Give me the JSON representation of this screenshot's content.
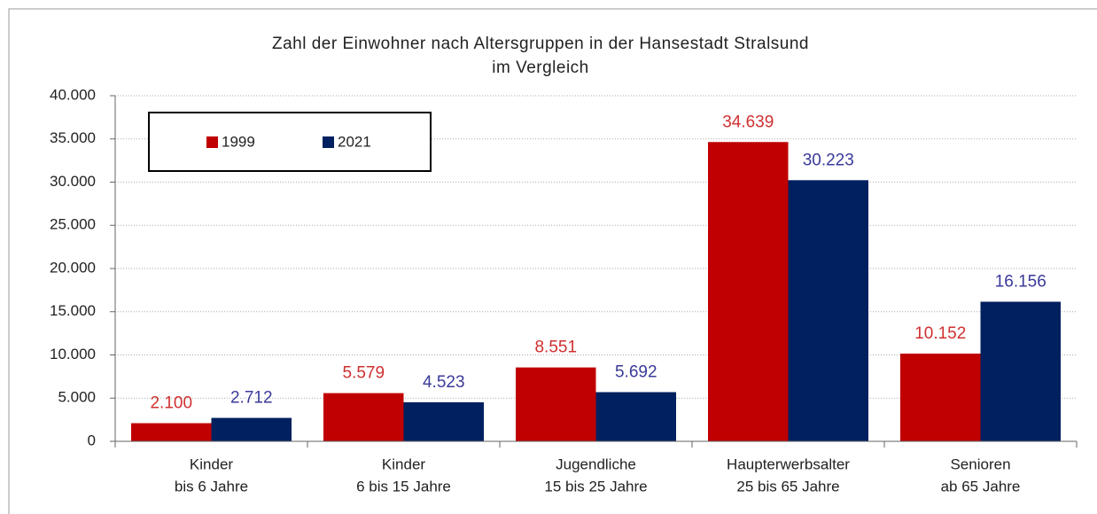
{
  "chart_data": {
    "type": "bar",
    "title": [
      "Zahl der Einwohner nach Altersgruppen in der Hansestadt Stralsund",
      "im Vergleich"
    ],
    "categories": [
      [
        "Kinder",
        "bis 6 Jahre"
      ],
      [
        "Kinder",
        "6 bis 15 Jahre"
      ],
      [
        "Jugendliche",
        "15 bis 25 Jahre"
      ],
      [
        "Haupterwerbsalter",
        "25 bis 65 Jahre"
      ],
      [
        "Senioren",
        "ab 65 Jahre"
      ]
    ],
    "series": [
      {
        "name": "1999",
        "color": "#c00000",
        "values": [
          2100,
          5579,
          8551,
          34639,
          10152
        ],
        "value_labels": [
          "2.100",
          "5.579",
          "8.551",
          "34.639",
          "10.152"
        ]
      },
      {
        "name": "2021",
        "color": "#002060",
        "values": [
          2712,
          4523,
          5692,
          30223,
          16156
        ],
        "value_labels": [
          "2.712",
          "4.523",
          "5.692",
          "30.223",
          "16.156"
        ]
      }
    ],
    "ylim": [
      0,
      40000
    ],
    "yticks": [
      0,
      {
        "value": 5000,
        "label": "5.000"
      },
      {
        "value": 10000,
        "label": "10.000"
      },
      {
        "value": 15000,
        "label": "15.000"
      },
      {
        "value": 20000,
        "label": "20.000"
      },
      {
        "value": 25000,
        "label": "25.000"
      },
      {
        "value": 30000,
        "label": "30.000"
      },
      {
        "value": 35000,
        "label": "35.000"
      },
      {
        "value": 40000,
        "label": "40.000"
      }
    ],
    "grid": true
  }
}
